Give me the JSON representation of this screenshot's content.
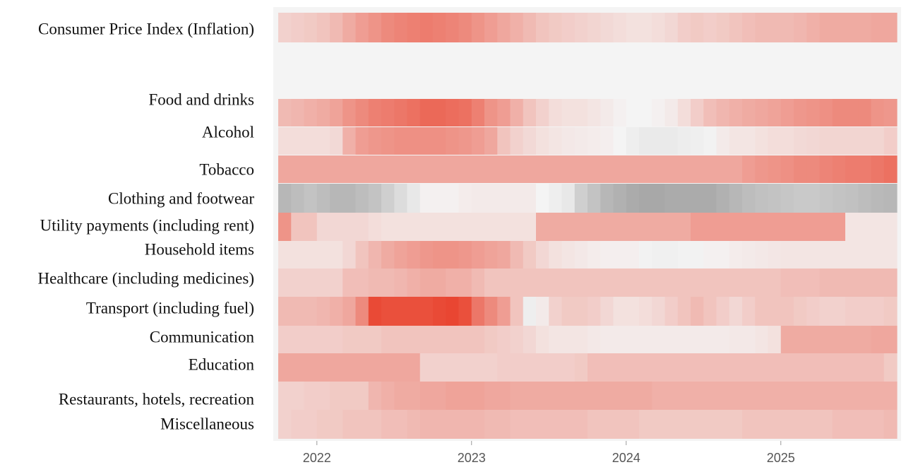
{
  "chart_data": {
    "type": "heatmap",
    "x": {
      "unit": "month",
      "start": "2021-10",
      "end": "2025-09",
      "tick_labels": [
        "2022",
        "2023",
        "2024",
        "2025"
      ]
    },
    "diverging_colors": {
      "negative": "#7a7a7a",
      "neutral": "#f4f4f4",
      "positive": "#e8331c"
    },
    "rows": [
      {
        "label": "Consumer Price Index (Inflation)",
        "values": [
          0.18,
          0.2,
          0.22,
          0.25,
          0.3,
          0.38,
          0.45,
          0.5,
          0.55,
          0.58,
          0.6,
          0.62,
          0.6,
          0.58,
          0.55,
          0.5,
          0.45,
          0.4,
          0.35,
          0.3,
          0.25,
          0.22,
          0.2,
          0.18,
          0.16,
          0.14,
          0.12,
          0.1,
          0.1,
          0.12,
          0.15,
          0.2,
          0.22,
          0.2,
          0.22,
          0.25,
          0.28,
          0.3,
          0.3,
          0.3,
          0.32,
          0.35,
          0.38,
          0.38,
          0.38,
          0.38,
          0.4,
          0.4
        ]
      },
      {
        "label": "Food and drinks",
        "values": [
          0.3,
          0.32,
          0.35,
          0.38,
          0.42,
          0.5,
          0.55,
          0.6,
          0.62,
          0.65,
          0.68,
          0.72,
          0.72,
          0.7,
          0.68,
          0.6,
          0.5,
          0.45,
          0.35,
          0.25,
          0.18,
          0.12,
          0.1,
          0.1,
          0.08,
          0.05,
          0.02,
          0.0,
          0.0,
          0.02,
          0.05,
          0.12,
          0.2,
          0.28,
          0.32,
          0.35,
          0.38,
          0.4,
          0.42,
          0.45,
          0.48,
          0.5,
          0.52,
          0.55,
          0.55,
          0.55,
          0.5,
          0.48
        ]
      },
      {
        "label": "Alcohol",
        "values": [
          0.12,
          0.12,
          0.12,
          0.12,
          0.14,
          0.35,
          0.45,
          0.48,
          0.5,
          0.52,
          0.52,
          0.52,
          0.52,
          0.5,
          0.48,
          0.45,
          0.4,
          0.25,
          0.18,
          0.14,
          0.1,
          0.08,
          0.06,
          0.05,
          0.04,
          0.03,
          0.0,
          -0.05,
          -0.08,
          -0.08,
          -0.08,
          -0.06,
          -0.04,
          -0.02,
          0.05,
          0.08,
          0.08,
          0.1,
          0.12,
          0.12,
          0.14,
          0.15,
          0.16,
          0.16,
          0.16,
          0.16,
          0.16,
          0.2
        ]
      },
      {
        "label": "Tobacco",
        "values": [
          0.4,
          0.4,
          0.4,
          0.4,
          0.4,
          0.4,
          0.4,
          0.4,
          0.4,
          0.4,
          0.4,
          0.4,
          0.4,
          0.4,
          0.4,
          0.4,
          0.4,
          0.4,
          0.4,
          0.4,
          0.4,
          0.4,
          0.4,
          0.4,
          0.4,
          0.4,
          0.4,
          0.4,
          0.4,
          0.4,
          0.4,
          0.4,
          0.4,
          0.4,
          0.4,
          0.4,
          0.45,
          0.48,
          0.5,
          0.52,
          0.55,
          0.55,
          0.58,
          0.6,
          0.62,
          0.62,
          0.65,
          0.68
        ]
      },
      {
        "label": "Clothing and footwear",
        "values": [
          -0.5,
          -0.45,
          -0.4,
          -0.45,
          -0.5,
          -0.5,
          -0.45,
          -0.4,
          -0.3,
          -0.2,
          -0.1,
          0.02,
          0.02,
          0.02,
          0.04,
          0.05,
          0.05,
          0.05,
          0.05,
          0.05,
          0.0,
          -0.05,
          -0.1,
          -0.3,
          -0.4,
          -0.5,
          -0.55,
          -0.6,
          -0.62,
          -0.62,
          -0.6,
          -0.6,
          -0.6,
          -0.6,
          -0.55,
          -0.5,
          -0.45,
          -0.42,
          -0.4,
          -0.38,
          -0.35,
          -0.35,
          -0.38,
          -0.4,
          -0.42,
          -0.45,
          -0.48,
          -0.5
        ]
      },
      {
        "label": "Utility payments (including rent)",
        "values": [
          0.5,
          0.25,
          0.25,
          0.15,
          0.15,
          0.15,
          0.15,
          0.12,
          0.1,
          0.1,
          0.1,
          0.1,
          0.1,
          0.1,
          0.1,
          0.1,
          0.1,
          0.1,
          0.1,
          0.1,
          0.38,
          0.38,
          0.38,
          0.38,
          0.38,
          0.38,
          0.38,
          0.38,
          0.38,
          0.38,
          0.38,
          0.38,
          0.45,
          0.45,
          0.45,
          0.45,
          0.45,
          0.45,
          0.45,
          0.45,
          0.45,
          0.45,
          0.45,
          0.45,
          0.08,
          0.08,
          0.08,
          0.08
        ]
      },
      {
        "label": "Household items",
        "values": [
          0.1,
          0.1,
          0.1,
          0.1,
          0.1,
          0.15,
          0.25,
          0.32,
          0.38,
          0.42,
          0.45,
          0.48,
          0.5,
          0.5,
          0.48,
          0.45,
          0.42,
          0.4,
          0.3,
          0.22,
          0.15,
          0.1,
          0.08,
          0.06,
          0.04,
          0.03,
          0.03,
          0.03,
          -0.02,
          -0.03,
          -0.03,
          -0.02,
          -0.02,
          0.02,
          0.02,
          0.04,
          0.05,
          0.06,
          0.07,
          0.08,
          0.08,
          0.08,
          0.08,
          0.08,
          0.08,
          0.08,
          0.08,
          0.08
        ]
      },
      {
        "label": "Healthcare (including medicines)",
        "values": [
          0.18,
          0.18,
          0.18,
          0.18,
          0.18,
          0.28,
          0.28,
          0.3,
          0.3,
          0.32,
          0.35,
          0.38,
          0.38,
          0.35,
          0.35,
          0.3,
          0.25,
          0.25,
          0.25,
          0.25,
          0.25,
          0.25,
          0.25,
          0.25,
          0.25,
          0.25,
          0.25,
          0.25,
          0.25,
          0.25,
          0.25,
          0.25,
          0.25,
          0.25,
          0.25,
          0.25,
          0.25,
          0.25,
          0.25,
          0.28,
          0.28,
          0.28,
          0.3,
          0.3,
          0.3,
          0.3,
          0.3,
          0.3
        ]
      },
      {
        "label": "Transport (including fuel)",
        "values": [
          0.3,
          0.3,
          0.3,
          0.32,
          0.35,
          0.4,
          0.55,
          0.88,
          0.85,
          0.85,
          0.85,
          0.85,
          0.88,
          0.9,
          0.85,
          0.65,
          0.55,
          0.45,
          0.25,
          -0.05,
          0.05,
          0.18,
          0.22,
          0.22,
          0.2,
          0.15,
          0.1,
          0.1,
          0.12,
          0.15,
          0.2,
          0.25,
          0.3,
          0.25,
          0.2,
          0.15,
          0.2,
          0.25,
          0.25,
          0.25,
          0.22,
          0.2,
          0.18,
          0.18,
          0.2,
          0.2,
          0.2,
          0.22
        ]
      },
      {
        "label": "Communication",
        "values": [
          0.2,
          0.2,
          0.2,
          0.2,
          0.2,
          0.22,
          0.22,
          0.22,
          0.25,
          0.25,
          0.25,
          0.25,
          0.25,
          0.25,
          0.25,
          0.25,
          0.22,
          0.2,
          0.18,
          0.15,
          0.1,
          0.08,
          0.08,
          0.08,
          0.06,
          0.05,
          0.05,
          0.05,
          0.05,
          0.05,
          0.05,
          0.05,
          0.05,
          0.05,
          0.05,
          0.06,
          0.06,
          0.08,
          0.1,
          0.38,
          0.38,
          0.38,
          0.38,
          0.38,
          0.38,
          0.38,
          0.4,
          0.4
        ]
      },
      {
        "label": "Education",
        "values": [
          0.4,
          0.4,
          0.4,
          0.4,
          0.4,
          0.4,
          0.4,
          0.4,
          0.4,
          0.4,
          0.4,
          0.18,
          0.18,
          0.18,
          0.18,
          0.18,
          0.18,
          0.2,
          0.2,
          0.2,
          0.2,
          0.2,
          0.2,
          0.22,
          0.28,
          0.28,
          0.28,
          0.28,
          0.28,
          0.28,
          0.28,
          0.28,
          0.28,
          0.28,
          0.28,
          0.28,
          0.28,
          0.28,
          0.28,
          0.28,
          0.28,
          0.28,
          0.28,
          0.28,
          0.28,
          0.28,
          0.28,
          0.22
        ]
      },
      {
        "label": "Restaurants, hotels, recreation",
        "values": [
          0.18,
          0.18,
          0.2,
          0.2,
          0.22,
          0.22,
          0.22,
          0.32,
          0.35,
          0.38,
          0.38,
          0.4,
          0.4,
          0.42,
          0.42,
          0.42,
          0.4,
          0.4,
          0.38,
          0.38,
          0.38,
          0.38,
          0.38,
          0.38,
          0.38,
          0.38,
          0.38,
          0.38,
          0.38,
          0.35,
          0.35,
          0.35,
          0.35,
          0.35,
          0.35,
          0.35,
          0.35,
          0.35,
          0.35,
          0.35,
          0.35,
          0.35,
          0.35,
          0.35,
          0.35,
          0.35,
          0.35,
          0.35
        ]
      },
      {
        "label": "Miscellaneous",
        "values": [
          0.18,
          0.2,
          0.2,
          0.22,
          0.22,
          0.25,
          0.25,
          0.25,
          0.28,
          0.28,
          0.3,
          0.32,
          0.32,
          0.32,
          0.32,
          0.32,
          0.3,
          0.3,
          0.28,
          0.28,
          0.28,
          0.28,
          0.28,
          0.28,
          0.25,
          0.25,
          0.25,
          0.25,
          0.22,
          0.22,
          0.22,
          0.22,
          0.22,
          0.22,
          0.22,
          0.22,
          0.25,
          0.25,
          0.25,
          0.25,
          0.25,
          0.25,
          0.25,
          0.28,
          0.28,
          0.28,
          0.28,
          0.3
        ]
      }
    ]
  }
}
